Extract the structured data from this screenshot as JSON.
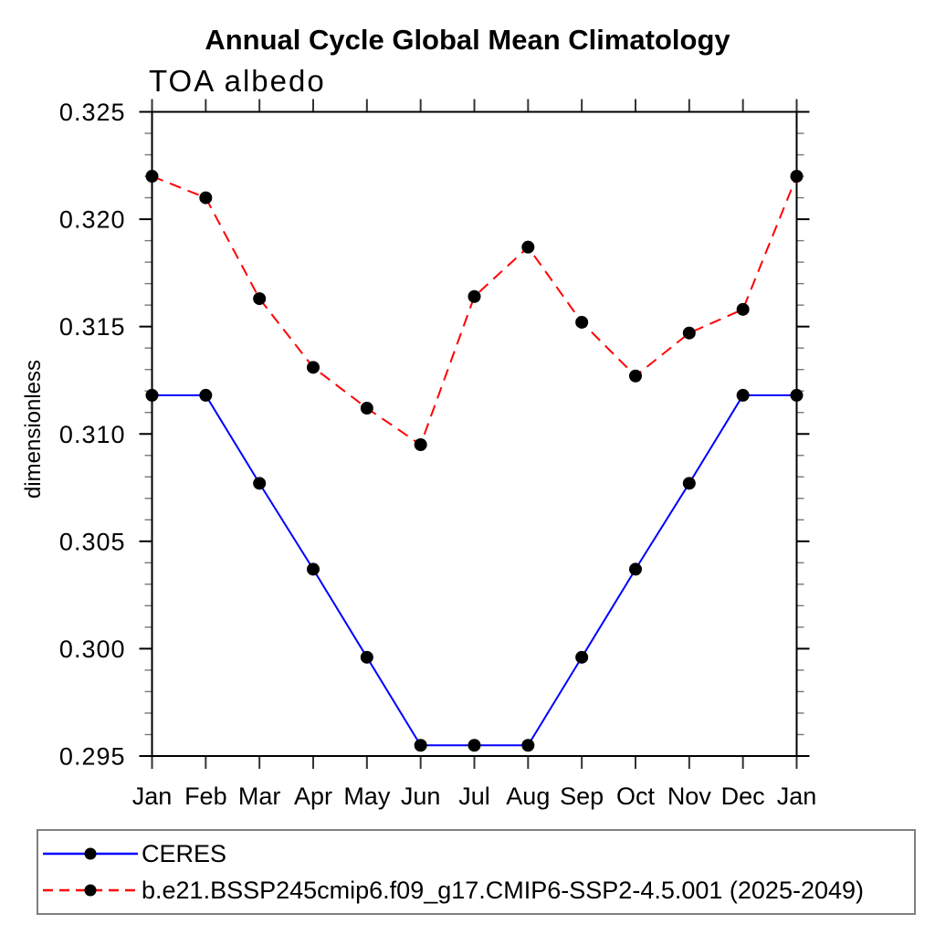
{
  "chart_data": {
    "type": "line",
    "title": "Annual Cycle Global Mean Climatology",
    "subtitle": "TOA albedo",
    "ylabel": "dimensionless",
    "xlabel": "",
    "categories": [
      "Jan",
      "Feb",
      "Mar",
      "Apr",
      "May",
      "Jun",
      "Jul",
      "Aug",
      "Sep",
      "Oct",
      "Nov",
      "Dec",
      "Jan"
    ],
    "ylim": [
      0.295,
      0.325
    ],
    "ytick_step": 0.005,
    "yminor_step": 0.001,
    "ytick_labels": [
      "0.295",
      "0.300",
      "0.305",
      "0.310",
      "0.315",
      "0.320",
      "0.325"
    ],
    "grid": false,
    "legend_position": "bottom-left-box",
    "series": [
      {
        "name": "CERES",
        "color": "#0000ff",
        "line_style": "solid",
        "marker": "filled-circle",
        "marker_color": "#000000",
        "values": [
          0.3118,
          0.3118,
          0.3077,
          0.3037,
          0.2996,
          0.2955,
          0.2955,
          0.2955,
          0.2996,
          0.3037,
          0.3077,
          0.3118,
          0.3118
        ]
      },
      {
        "name": "b.e21.BSSP245cmip6.f09_g17.CMIP6-SSP2-4.5.001 (2025-2049)",
        "color": "#ff0000",
        "line_style": "dashed",
        "marker": "filled-circle",
        "marker_color": "#000000",
        "values": [
          0.322,
          0.321,
          0.3163,
          0.3131,
          0.3112,
          0.3095,
          0.3164,
          0.3187,
          0.3152,
          0.3127,
          0.3147,
          0.3158,
          0.322
        ]
      }
    ]
  }
}
